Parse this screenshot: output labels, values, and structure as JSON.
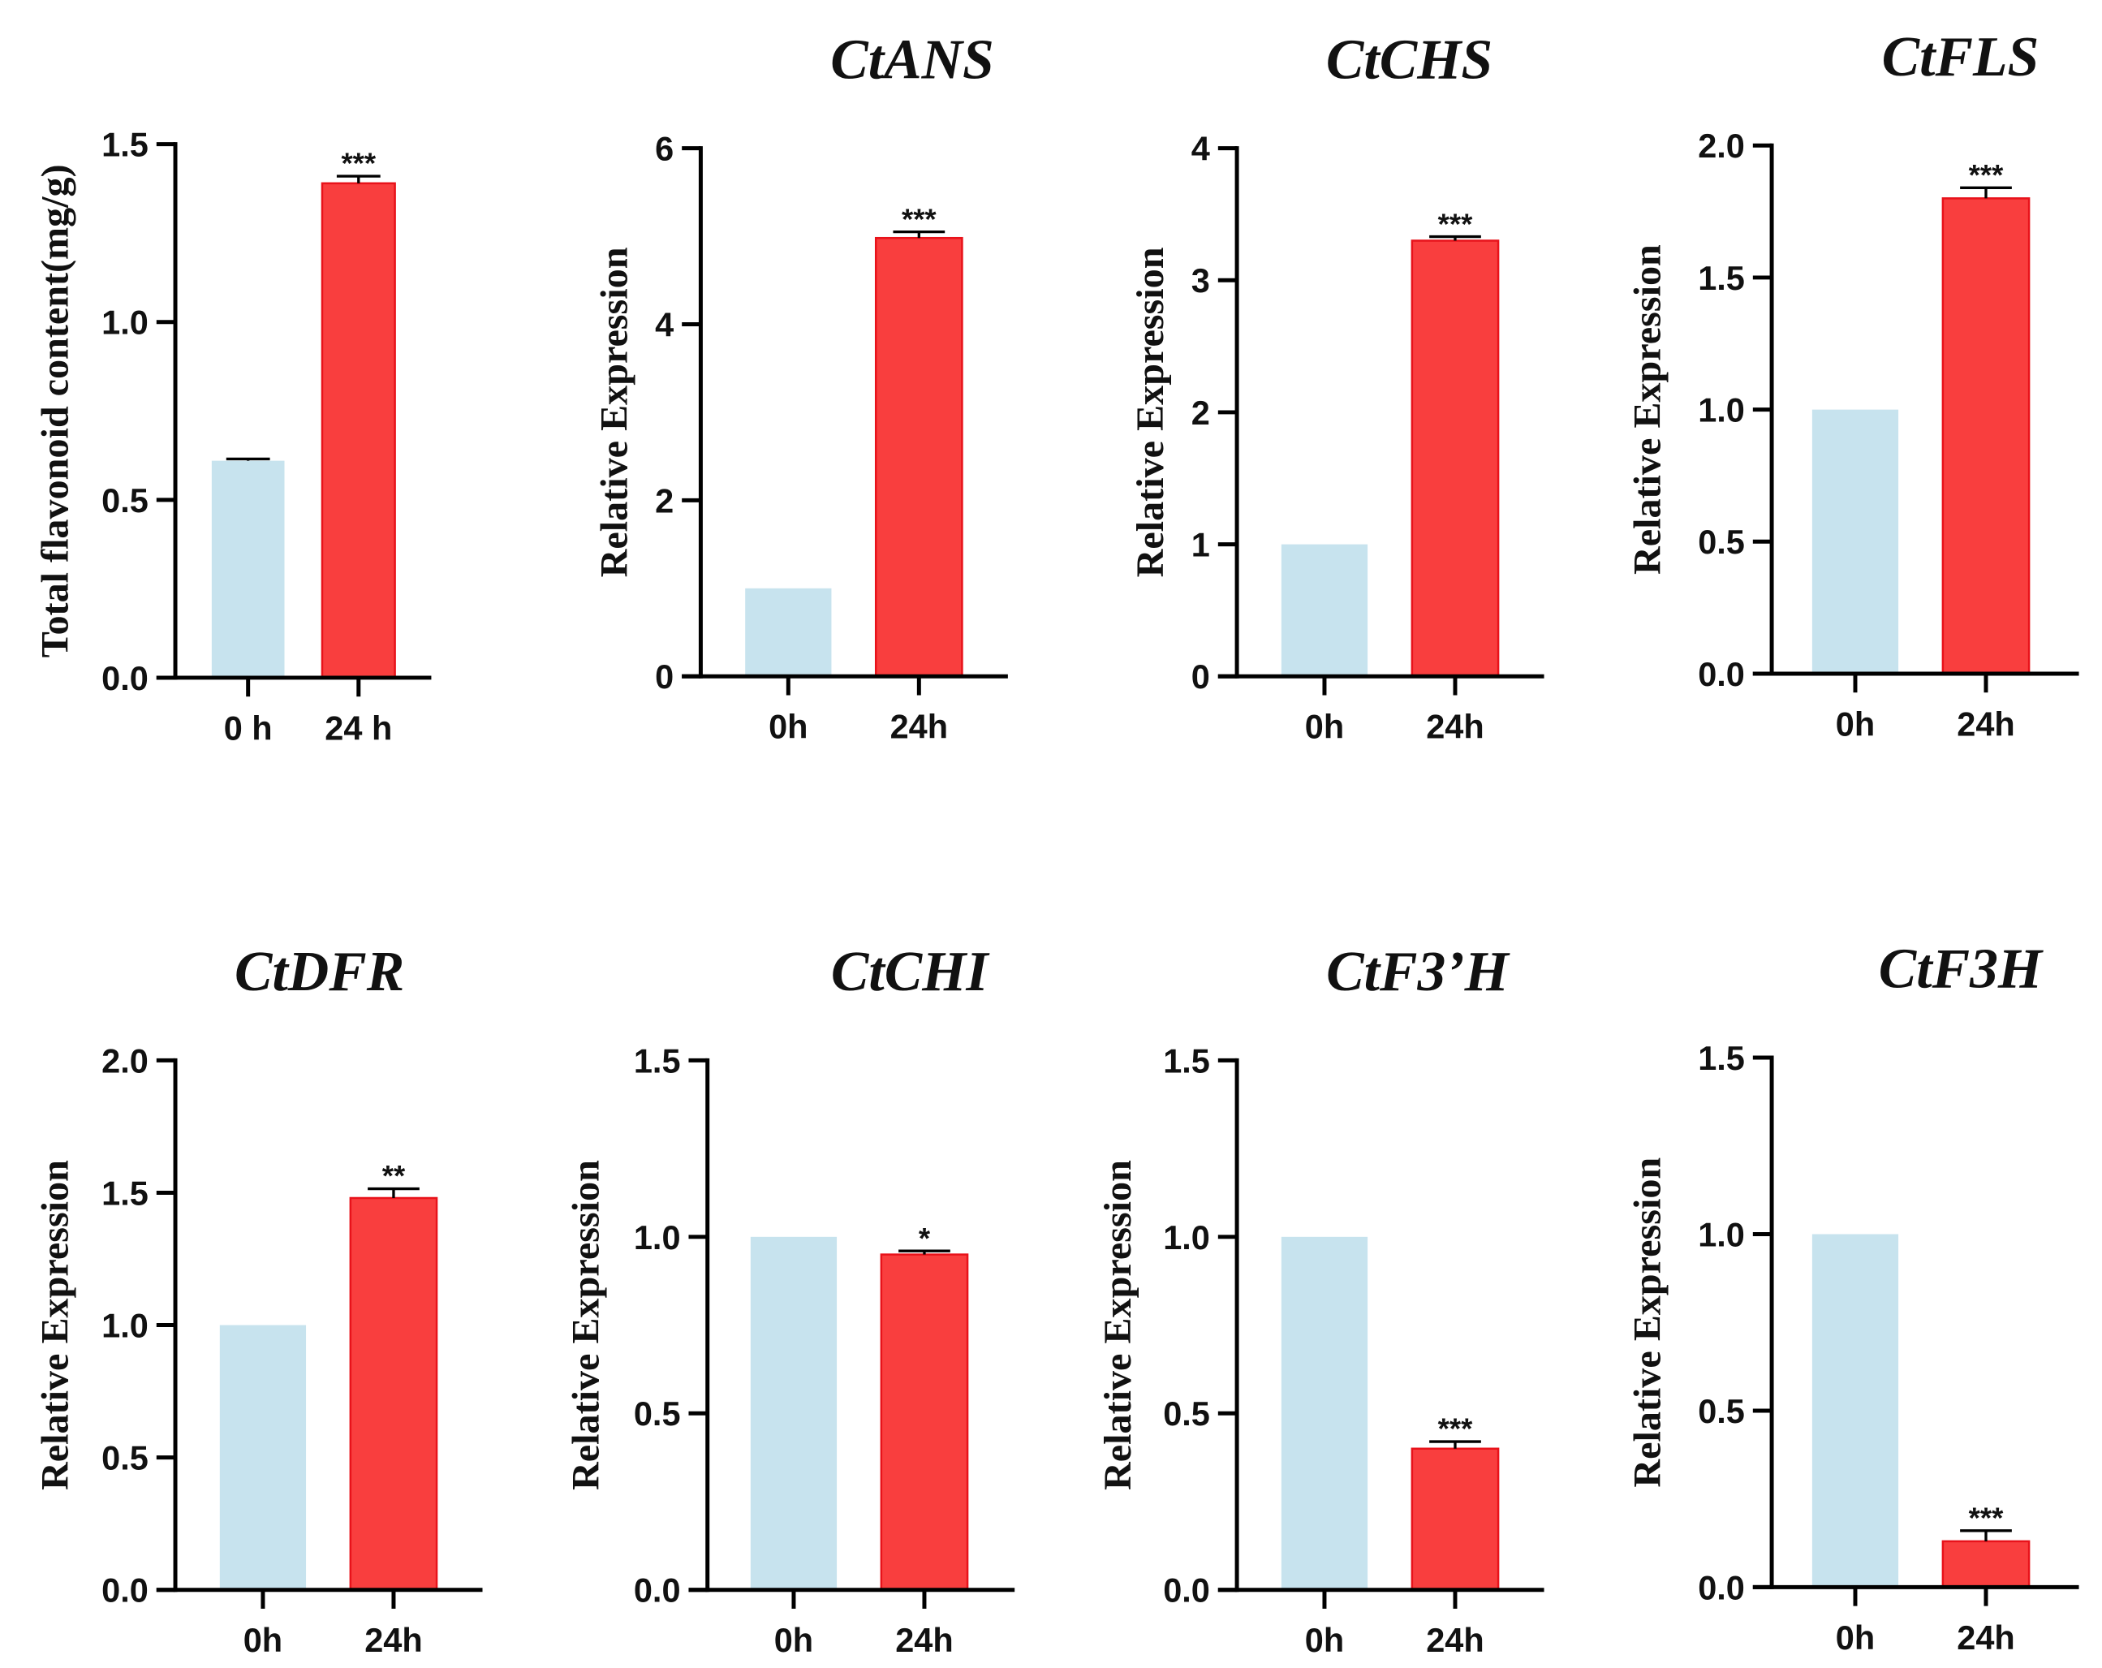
{
  "colors": {
    "control": "#c7e3ee",
    "treated": "#f93e3e",
    "treated_edge": "#e8121a",
    "axis": "#000000"
  },
  "chart_data": [
    {
      "type": "bar",
      "title": "",
      "ylabel": "Total flavonoid content(mg/g)",
      "categories": [
        "0 h",
        "24 h"
      ],
      "values": [
        0.61,
        1.39
      ],
      "errors": [
        0.005,
        0.02
      ],
      "significance": [
        "",
        "***"
      ],
      "ylim": [
        0,
        1.5
      ],
      "yticks": [
        "0.0",
        "0.5",
        "1.0",
        "1.5"
      ],
      "ytick_values": [
        0,
        0.5,
        1.0,
        1.5
      ]
    },
    {
      "type": "bar",
      "title": "CtANS",
      "ylabel": "Relative Expression",
      "categories": [
        "0h",
        "24h"
      ],
      "values": [
        1.0,
        4.98
      ],
      "errors": [
        0,
        0.07
      ],
      "significance": [
        "",
        "***"
      ],
      "ylim": [
        0,
        6
      ],
      "yticks": [
        "0",
        "2",
        "4",
        "6"
      ],
      "ytick_values": [
        0,
        2,
        4,
        6
      ]
    },
    {
      "type": "bar",
      "title": "CtCHS",
      "ylabel": "Relative Expression",
      "categories": [
        "0h",
        "24h"
      ],
      "values": [
        1.0,
        3.3
      ],
      "errors": [
        0,
        0.03
      ],
      "significance": [
        "",
        "***"
      ],
      "ylim": [
        0,
        4
      ],
      "yticks": [
        "0",
        "1",
        "2",
        "3",
        "4"
      ],
      "ytick_values": [
        0,
        1,
        2,
        3,
        4
      ]
    },
    {
      "type": "bar",
      "title": "CtFLS",
      "ylabel": "Relative Expression",
      "categories": [
        "0h",
        "24h"
      ],
      "values": [
        1.0,
        1.8
      ],
      "errors": [
        0,
        0.04
      ],
      "significance": [
        "",
        "***"
      ],
      "ylim": [
        0,
        2
      ],
      "yticks": [
        "0.0",
        "0.5",
        "1.0",
        "1.5",
        "2.0"
      ],
      "ytick_values": [
        0,
        0.5,
        1.0,
        1.5,
        2.0
      ]
    },
    {
      "type": "bar",
      "title": "CtDFR",
      "ylabel": "Relative Expression",
      "categories": [
        "0h",
        "24h"
      ],
      "values": [
        1.0,
        1.48
      ],
      "errors": [
        0,
        0.035
      ],
      "significance": [
        "",
        "**"
      ],
      "ylim": [
        0,
        2
      ],
      "yticks": [
        "0.0",
        "0.5",
        "1.0",
        "1.5",
        "2.0"
      ],
      "ytick_values": [
        0,
        0.5,
        1.0,
        1.5,
        2.0
      ]
    },
    {
      "type": "bar",
      "title": "CtCHI",
      "ylabel": "Relative Expression",
      "categories": [
        "0h",
        "24h"
      ],
      "values": [
        1.0,
        0.95
      ],
      "errors": [
        0,
        0.01
      ],
      "significance": [
        "",
        "*"
      ],
      "ylim": [
        0,
        1.5
      ],
      "yticks": [
        "0.0",
        "0.5",
        "1.0",
        "1.5"
      ],
      "ytick_values": [
        0,
        0.5,
        1.0,
        1.5
      ]
    },
    {
      "type": "bar",
      "title": "CtF3’H",
      "ylabel": "Relative Expression",
      "categories": [
        "0h",
        "24h"
      ],
      "values": [
        1.0,
        0.4
      ],
      "errors": [
        0,
        0.02
      ],
      "significance": [
        "",
        "***"
      ],
      "ylim": [
        0,
        1.5
      ],
      "yticks": [
        "0.0",
        "0.5",
        "1.0",
        "1.5"
      ],
      "ytick_values": [
        0,
        0.5,
        1.0,
        1.5
      ]
    },
    {
      "type": "bar",
      "title": "CtF3H",
      "ylabel": "Relative Expression",
      "categories": [
        "0h",
        "24h"
      ],
      "values": [
        1.0,
        0.13
      ],
      "errors": [
        0,
        0.03
      ],
      "significance": [
        "",
        "***"
      ],
      "ylim": [
        0,
        1.5
      ],
      "yticks": [
        "0.0",
        "0.5",
        "1.0",
        "1.5"
      ],
      "ytick_values": [
        0,
        0.5,
        1.0,
        1.5
      ]
    }
  ]
}
